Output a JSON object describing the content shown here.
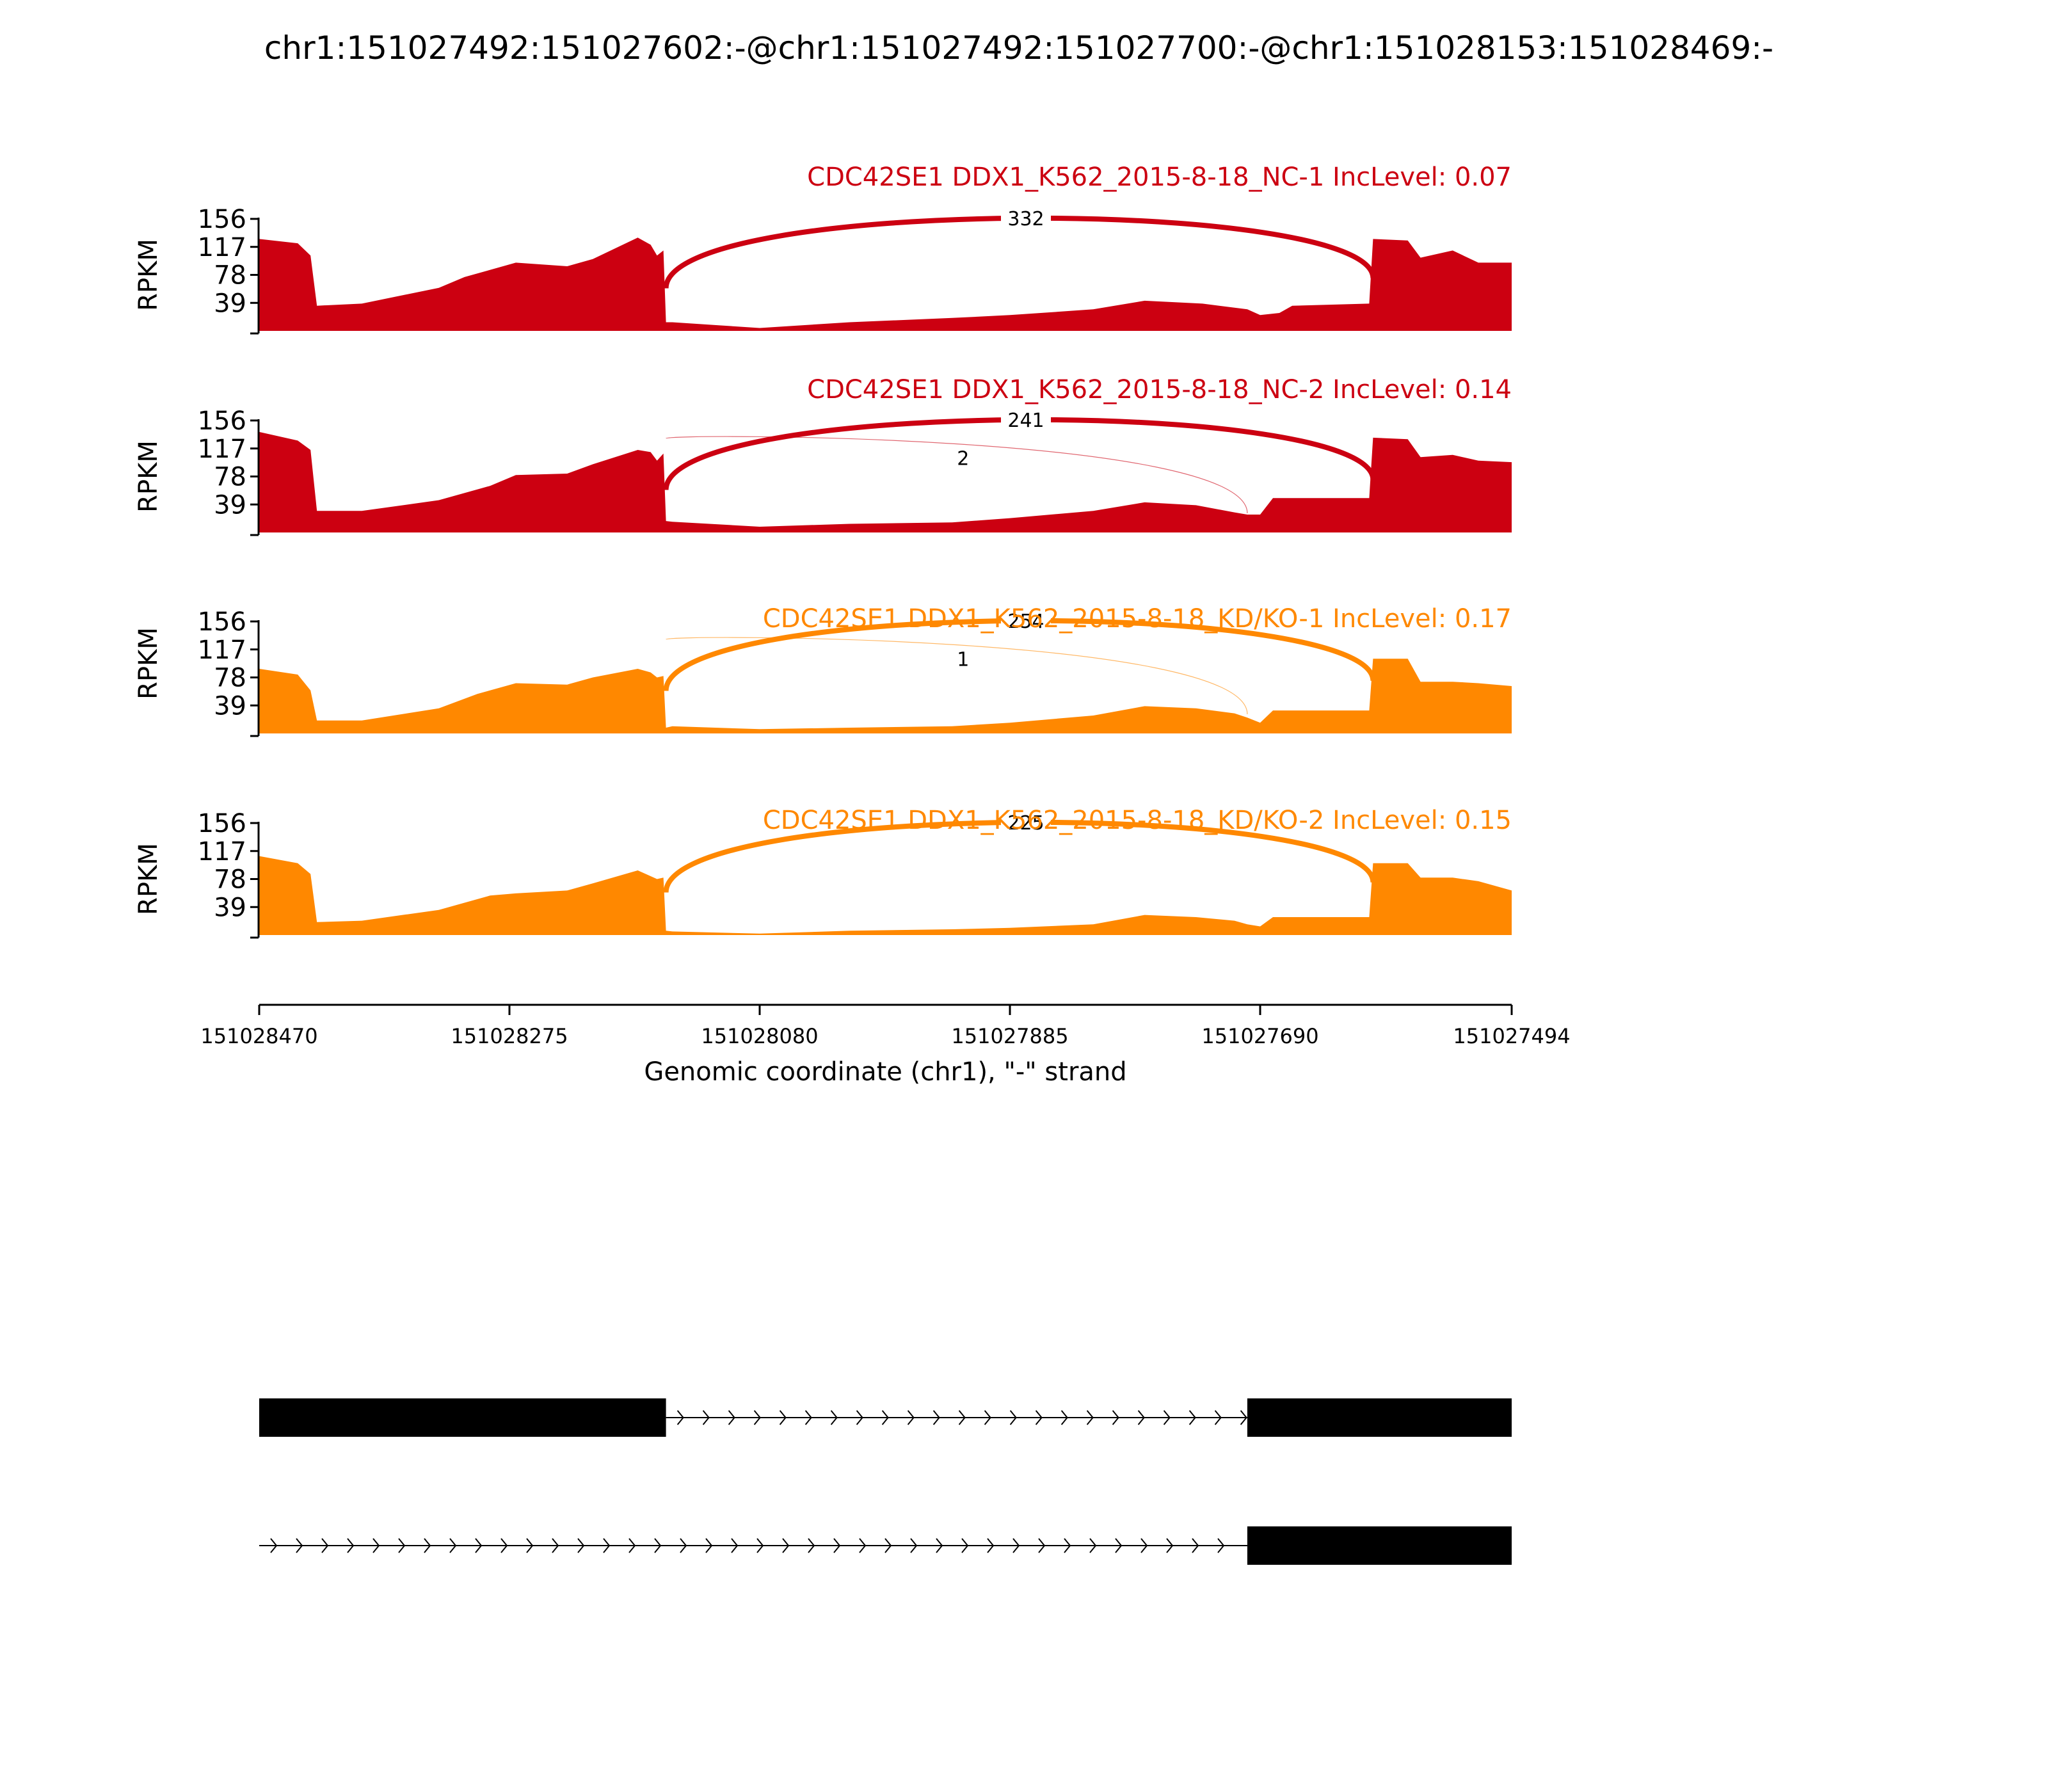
{
  "title": "chr1:151027492:151027602:-@chr1:151027492:151027700:-@chr1:151028153:151028469:-",
  "chart_data": {
    "type": "area",
    "x_axis": {
      "label": "Genomic coordinate (chr1), \"-\" strand",
      "ticks": [
        "151028470",
        "151028275",
        "151028080",
        "151027885",
        "151027690",
        "151027494"
      ],
      "range": [
        151028470,
        151027494
      ],
      "reversed": true
    },
    "y_axis": {
      "label": "RPKM",
      "ticks": [
        "156",
        "117",
        "78",
        "39"
      ],
      "range": [
        0,
        156
      ]
    },
    "series": [
      {
        "name": "CDC42SE1 DDX1_K562_2015-8-18_NC-1 IncLevel: 0.07",
        "color": "#cc0011",
        "x": [
          151028470,
          151028440,
          151028430,
          151028425,
          151028390,
          151028330,
          151028310,
          151028270,
          151028230,
          151028210,
          151028175,
          151028165,
          151028160,
          151028155,
          151028153,
          151028148,
          151028080,
          151028010,
          151027930,
          151027885,
          151027820,
          151027780,
          151027735,
          151027700,
          151027690,
          151027675,
          151027665,
          151027605,
          151027602,
          151027575,
          151027565,
          151027540,
          151027520,
          151027494
        ],
        "values": [
          128,
          122,
          105,
          35,
          38,
          60,
          75,
          95,
          90,
          100,
          130,
          120,
          105,
          112,
          12,
          12,
          4,
          12,
          18,
          22,
          30,
          42,
          38,
          30,
          22,
          25,
          35,
          38,
          128,
          126,
          102,
          112,
          95,
          95
        ]
      },
      {
        "name": "CDC42SE1 DDX1_K562_2015-8-18_NC-2 IncLevel: 0.14",
        "color": "#cc0011",
        "x": [
          151028470,
          151028440,
          151028430,
          151028425,
          151028390,
          151028330,
          151028290,
          151028270,
          151028230,
          151028210,
          151028175,
          151028165,
          151028160,
          151028155,
          151028153,
          151028148,
          151028080,
          151028010,
          151027930,
          151027885,
          151027820,
          151027780,
          151027740,
          151027710,
          151027700,
          151027690,
          151027680,
          151027605,
          151027602,
          151027575,
          151027565,
          151027540,
          151027520,
          151027494
        ],
        "values": [
          140,
          128,
          115,
          30,
          30,
          45,
          65,
          80,
          82,
          95,
          115,
          112,
          100,
          110,
          16,
          15,
          8,
          12,
          14,
          20,
          30,
          42,
          38,
          28,
          25,
          25,
          48,
          48,
          132,
          130,
          105,
          108,
          100,
          98
        ]
      },
      {
        "name": "CDC42SE1 DDX1_K562_2015-8-18_KD/KO-1 IncLevel: 0.17",
        "color": "#ff8800",
        "x": [
          151028470,
          151028440,
          151028430,
          151028425,
          151028390,
          151028330,
          151028300,
          151028270,
          151028230,
          151028210,
          151028175,
          151028165,
          151028160,
          151028155,
          151028153,
          151028148,
          151028080,
          151028010,
          151027930,
          151027885,
          151027820,
          151027780,
          151027740,
          151027710,
          151027700,
          151027690,
          151027680,
          151027605,
          151027602,
          151027575,
          151027565,
          151027540,
          151027520,
          151027494
        ],
        "values": [
          90,
          82,
          60,
          18,
          18,
          35,
          55,
          70,
          68,
          78,
          90,
          85,
          78,
          80,
          8,
          10,
          6,
          8,
          10,
          15,
          25,
          38,
          35,
          28,
          22,
          15,
          32,
          32,
          104,
          104,
          72,
          72,
          70,
          66
        ]
      },
      {
        "name": "CDC42SE1 DDX1_K562_2015-8-18_KD/KO-2 IncLevel: 0.15",
        "color": "#ff8800",
        "x": [
          151028470,
          151028440,
          151028430,
          151028425,
          151028390,
          151028330,
          151028290,
          151028270,
          151028230,
          151028210,
          151028175,
          151028165,
          151028160,
          151028155,
          151028153,
          151028148,
          151028080,
          151028010,
          151027930,
          151027885,
          151027820,
          151027780,
          151027740,
          151027710,
          151027700,
          151027690,
          151027680,
          151027605,
          151027602,
          151027575,
          151027565,
          151027540,
          151027520,
          151027494
        ],
        "values": [
          110,
          100,
          85,
          18,
          20,
          35,
          55,
          58,
          62,
          72,
          90,
          82,
          78,
          80,
          6,
          5,
          2,
          6,
          8,
          10,
          15,
          28,
          25,
          20,
          15,
          12,
          25,
          25,
          100,
          100,
          80,
          80,
          75,
          62
        ]
      }
    ],
    "junctions": [
      [
        {
          "from": 151028153,
          "to": 151027602,
          "count": "332",
          "width": 8
        }
      ],
      [
        {
          "from": 151028153,
          "to": 151027602,
          "count": "241",
          "width": 8
        },
        {
          "from": 151028153,
          "to": 151027700,
          "count": "2",
          "width": 1.2
        }
      ],
      [
        {
          "from": 151028153,
          "to": 151027602,
          "count": "254",
          "width": 8
        },
        {
          "from": 151028153,
          "to": 151027700,
          "count": "1",
          "width": 1.2
        }
      ],
      [
        {
          "from": 151028153,
          "to": 151027602,
          "count": "225",
          "width": 8
        }
      ]
    ],
    "isoforms": [
      {
        "exons": [
          [
            151028470,
            151028153
          ],
          [
            151027700,
            151027494
          ]
        ],
        "intron": [
          151028153,
          151027700
        ]
      },
      {
        "exons": [
          [
            151027700,
            151027494
          ]
        ],
        "intron": [
          151028470,
          151027700
        ]
      }
    ]
  }
}
